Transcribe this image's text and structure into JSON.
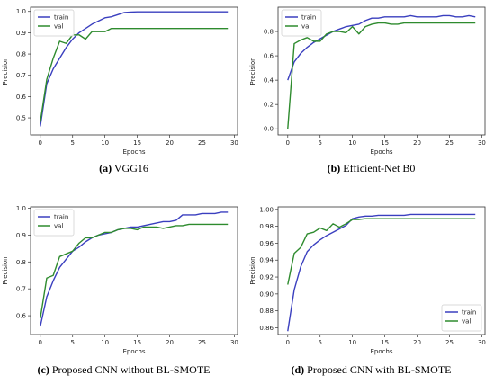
{
  "colors": {
    "train": "#3a3fbf",
    "val": "#2e8b2e"
  },
  "chart_data": [
    {
      "type": "line",
      "caption_letter": "(a)",
      "caption_text": " VGG16",
      "xlabel": "Epochs",
      "ylabel": "Precision",
      "xlim": [
        -1.5,
        30.5
      ],
      "ylim": [
        0.42,
        1.02
      ],
      "xticks": [
        0,
        5,
        10,
        15,
        20,
        25,
        30
      ],
      "xtick_labels": [
        "0",
        "5",
        "10",
        "15",
        "20",
        "25",
        "30"
      ],
      "yticks": [
        0.5,
        0.6,
        0.7,
        0.8,
        0.9,
        1.0
      ],
      "ytick_labels": [
        "0.5",
        "0.6",
        "0.7",
        "0.8",
        "0.9",
        "1.0"
      ],
      "legend": "upper-left",
      "grid": false,
      "x": [
        0,
        1,
        2,
        3,
        4,
        5,
        6,
        7,
        8,
        9,
        10,
        11,
        12,
        13,
        14,
        15,
        16,
        17,
        18,
        19,
        20,
        21,
        22,
        23,
        24,
        25,
        26,
        27,
        28,
        29
      ],
      "series": [
        {
          "name": "train",
          "values": [
            0.46,
            0.66,
            0.73,
            0.78,
            0.83,
            0.87,
            0.9,
            0.92,
            0.94,
            0.955,
            0.97,
            0.975,
            0.985,
            0.995,
            0.997,
            0.998,
            0.998,
            0.998,
            0.998,
            0.998,
            0.998,
            0.998,
            0.998,
            0.998,
            0.998,
            0.998,
            0.998,
            0.998,
            0.998,
            0.998
          ]
        },
        {
          "name": "val",
          "values": [
            0.48,
            0.68,
            0.78,
            0.86,
            0.85,
            0.89,
            0.89,
            0.87,
            0.905,
            0.905,
            0.905,
            0.92,
            0.92,
            0.92,
            0.92,
            0.92,
            0.92,
            0.92,
            0.92,
            0.92,
            0.92,
            0.92,
            0.92,
            0.92,
            0.92,
            0.92,
            0.92,
            0.92,
            0.92,
            0.92
          ]
        }
      ]
    },
    {
      "type": "line",
      "caption_letter": "(b)",
      "caption_text": " Efficient-Net B0",
      "xlabel": "Epochs",
      "ylabel": "Precision",
      "xlim": [
        -1.5,
        30.5
      ],
      "ylim": [
        -0.05,
        1.0
      ],
      "xticks": [
        0,
        5,
        10,
        15,
        20,
        25,
        30
      ],
      "xtick_labels": [
        "0",
        "5",
        "10",
        "15",
        "20",
        "25",
        "30"
      ],
      "yticks": [
        0.0,
        0.2,
        0.4,
        0.6,
        0.8
      ],
      "ytick_labels": [
        "0.0",
        "0.2",
        "0.4",
        "0.6",
        "0.8"
      ],
      "legend": "upper-left",
      "grid": false,
      "x": [
        0,
        1,
        2,
        3,
        4,
        5,
        6,
        7,
        8,
        9,
        10,
        11,
        12,
        13,
        14,
        15,
        16,
        17,
        18,
        19,
        20,
        21,
        22,
        23,
        24,
        25,
        26,
        27,
        28,
        29
      ],
      "series": [
        {
          "name": "train",
          "values": [
            0.4,
            0.55,
            0.62,
            0.67,
            0.71,
            0.74,
            0.77,
            0.8,
            0.82,
            0.84,
            0.85,
            0.86,
            0.89,
            0.91,
            0.91,
            0.92,
            0.92,
            0.92,
            0.92,
            0.93,
            0.92,
            0.92,
            0.92,
            0.92,
            0.93,
            0.93,
            0.92,
            0.92,
            0.93,
            0.92
          ]
        },
        {
          "name": "val",
          "values": [
            0.0,
            0.7,
            0.73,
            0.75,
            0.72,
            0.72,
            0.78,
            0.8,
            0.8,
            0.79,
            0.84,
            0.78,
            0.84,
            0.86,
            0.87,
            0.87,
            0.86,
            0.86,
            0.87,
            0.87,
            0.87,
            0.87,
            0.87,
            0.87,
            0.87,
            0.87,
            0.87,
            0.87,
            0.87,
            0.87
          ]
        }
      ]
    },
    {
      "type": "line",
      "caption_letter": "(c)",
      "caption_text": " Proposed CNN without BL-SMOTE",
      "xlabel": "Epochs",
      "ylabel": "Precision",
      "xlim": [
        -1.5,
        30.5
      ],
      "ylim": [
        0.53,
        1.005
      ],
      "xticks": [
        0,
        5,
        10,
        15,
        20,
        25,
        30
      ],
      "xtick_labels": [
        "0",
        "5",
        "10",
        "15",
        "20",
        "25",
        "30"
      ],
      "yticks": [
        0.6,
        0.7,
        0.8,
        0.9,
        1.0
      ],
      "ytick_labels": [
        "0.6",
        "0.7",
        "0.8",
        "0.9",
        "1.0"
      ],
      "legend": "upper-left",
      "grid": false,
      "x": [
        0,
        1,
        2,
        3,
        4,
        5,
        6,
        7,
        8,
        9,
        10,
        11,
        12,
        13,
        14,
        15,
        16,
        17,
        18,
        19,
        20,
        21,
        22,
        23,
        24,
        25,
        26,
        27,
        28,
        29
      ],
      "series": [
        {
          "name": "train",
          "values": [
            0.56,
            0.67,
            0.73,
            0.78,
            0.81,
            0.84,
            0.855,
            0.875,
            0.89,
            0.9,
            0.905,
            0.91,
            0.92,
            0.925,
            0.93,
            0.93,
            0.935,
            0.94,
            0.945,
            0.95,
            0.95,
            0.955,
            0.975,
            0.975,
            0.975,
            0.98,
            0.98,
            0.98,
            0.985,
            0.985
          ]
        },
        {
          "name": "val",
          "values": [
            0.59,
            0.74,
            0.75,
            0.82,
            0.83,
            0.84,
            0.87,
            0.89,
            0.89,
            0.9,
            0.91,
            0.91,
            0.92,
            0.925,
            0.925,
            0.92,
            0.93,
            0.93,
            0.93,
            0.925,
            0.93,
            0.935,
            0.935,
            0.94,
            0.94,
            0.94,
            0.94,
            0.94,
            0.94,
            0.94
          ]
        }
      ]
    },
    {
      "type": "line",
      "caption_letter": "(d)",
      "caption_text": " Proposed CNN with BL-SMOTE",
      "xlabel": "Epochs",
      "ylabel": "Precision",
      "xlim": [
        -1.5,
        30.5
      ],
      "ylim": [
        0.852,
        1.003
      ],
      "xticks": [
        0,
        5,
        10,
        15,
        20,
        25,
        30
      ],
      "xtick_labels": [
        "0",
        "5",
        "10",
        "15",
        "20",
        "25",
        "30"
      ],
      "yticks": [
        0.86,
        0.88,
        0.9,
        0.92,
        0.94,
        0.96,
        0.98,
        1.0
      ],
      "ytick_labels": [
        "0.86",
        "0.88",
        "0.90",
        "0.92",
        "0.94",
        "0.96",
        "0.98",
        "1.00"
      ],
      "legend": "lower-right",
      "grid": false,
      "x": [
        0,
        1,
        2,
        3,
        4,
        5,
        6,
        7,
        8,
        9,
        10,
        11,
        12,
        13,
        14,
        15,
        16,
        17,
        18,
        19,
        20,
        21,
        22,
        23,
        24,
        25,
        26,
        27,
        28,
        29
      ],
      "series": [
        {
          "name": "train",
          "values": [
            0.856,
            0.905,
            0.932,
            0.95,
            0.958,
            0.964,
            0.969,
            0.973,
            0.977,
            0.981,
            0.989,
            0.991,
            0.992,
            0.992,
            0.993,
            0.993,
            0.993,
            0.993,
            0.993,
            0.994,
            0.994,
            0.994,
            0.994,
            0.994,
            0.994,
            0.994,
            0.994,
            0.994,
            0.994,
            0.994
          ]
        },
        {
          "name": "val",
          "values": [
            0.911,
            0.948,
            0.955,
            0.971,
            0.973,
            0.978,
            0.975,
            0.983,
            0.979,
            0.983,
            0.988,
            0.988,
            0.989,
            0.989,
            0.989,
            0.989,
            0.989,
            0.989,
            0.989,
            0.989,
            0.989,
            0.989,
            0.989,
            0.989,
            0.989,
            0.989,
            0.989,
            0.989,
            0.989,
            0.989
          ]
        }
      ]
    }
  ]
}
